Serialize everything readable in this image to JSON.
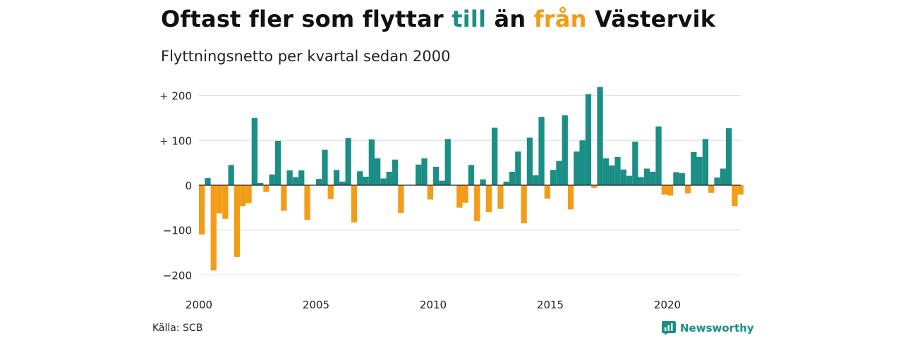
{
  "title": {
    "part1": "Oftast fler som flyttar ",
    "part2": "till",
    "part3": " än ",
    "part4": "från",
    "part5": " Västervik"
  },
  "subtitle": "Flyttningsnetto per kvartal sedan 2000",
  "source": "Källa: SCB",
  "brand": "Newsworthy",
  "colors": {
    "positive": "#1b8f85",
    "negative": "#f29d1a",
    "grid": "#dddddd",
    "axis": "#222222"
  },
  "chart_data": {
    "type": "bar",
    "title": "Oftast fler som flyttar till än från Västervik",
    "subtitle": "Flyttningsnetto per kvartal sedan 2000",
    "xlabel": "",
    "ylabel": "",
    "x_ticks": [
      2000,
      2005,
      2010,
      2015,
      2020
    ],
    "y_ticks": [
      {
        "value": 200,
        "label": "+ 200"
      },
      {
        "value": 100,
        "label": "+ 100"
      },
      {
        "value": 0,
        "label": "0"
      },
      {
        "value": -100,
        "label": "−100"
      },
      {
        "value": -200,
        "label": "−200"
      }
    ],
    "ylim": [
      -200,
      220
    ],
    "grid": true,
    "start": "2000 Q1",
    "values": [
      -110,
      16,
      -190,
      -63,
      -75,
      45,
      -160,
      -47,
      -40,
      150,
      5,
      -15,
      24,
      99,
      -57,
      33,
      18,
      33,
      -77,
      0,
      14,
      79,
      -31,
      34,
      8,
      105,
      -83,
      31,
      19,
      102,
      60,
      15,
      30,
      57,
      -62,
      0,
      0,
      46,
      60,
      -32,
      41,
      10,
      103,
      0,
      -50,
      -39,
      45,
      -80,
      13,
      -60,
      128,
      -53,
      8,
      30,
      75,
      -85,
      106,
      22,
      152,
      -30,
      34,
      54,
      156,
      -54,
      75,
      100,
      203,
      -6,
      219,
      60,
      44,
      63,
      35,
      21,
      97,
      18,
      37,
      30,
      131,
      -21,
      -23,
      29,
      27,
      -18,
      74,
      63,
      103,
      -17,
      17,
      37,
      127,
      -47,
      -21
    ]
  }
}
